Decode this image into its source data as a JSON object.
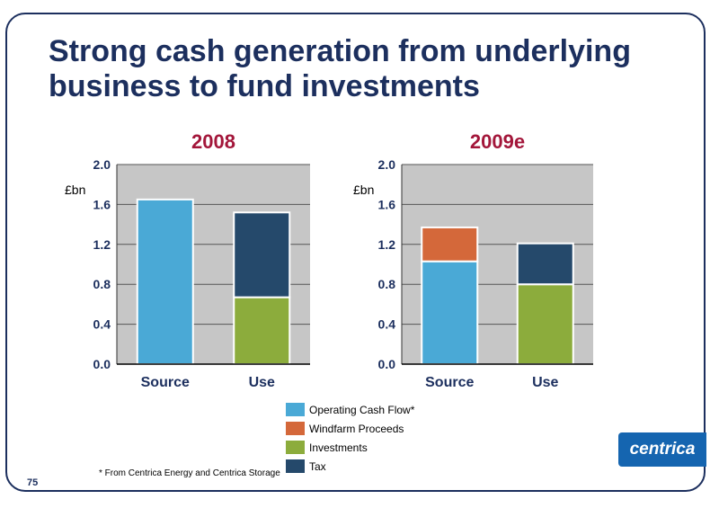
{
  "page": {
    "title": "Strong cash generation from underlying business to fund investments",
    "page_number": "75",
    "footnote": "* From Centrica Energy and Centrica Storage",
    "logo_text": "centrica"
  },
  "colors": {
    "operating_cash_flow": "#4aa9d6",
    "windfarm_proceeds": "#d4683a",
    "investments": "#8cac3c",
    "tax": "#25496b",
    "plot_background": "#c6c6c6",
    "title": "#1c2f5e",
    "chart_title": "#a3163a"
  },
  "legend": [
    {
      "label": "Operating Cash Flow*",
      "color": "#4aa9d6"
    },
    {
      "label": "Windfarm Proceeds",
      "color": "#d4683a"
    },
    {
      "label": "Investments",
      "color": "#8cac3c"
    },
    {
      "label": "Tax",
      "color": "#25496b"
    }
  ],
  "chart_data": [
    {
      "type": "bar",
      "stacked": true,
      "title": "2008",
      "ylabel": "£bn",
      "ylim": [
        0,
        2.0
      ],
      "yticks": [
        "0.0",
        "0.4",
        "0.8",
        "1.2",
        "1.6",
        "2.0"
      ],
      "categories": [
        "Source",
        "Use"
      ],
      "series": [
        {
          "name": "Operating Cash Flow*",
          "values": [
            1.65,
            0
          ]
        },
        {
          "name": "Windfarm Proceeds",
          "values": [
            0,
            0
          ]
        },
        {
          "name": "Investments",
          "values": [
            0,
            0.67
          ]
        },
        {
          "name": "Tax",
          "values": [
            0,
            0.85
          ]
        }
      ]
    },
    {
      "type": "bar",
      "stacked": true,
      "title": "2009e",
      "ylabel": "£bn",
      "ylim": [
        0,
        2.0
      ],
      "yticks": [
        "0.0",
        "0.4",
        "0.8",
        "1.2",
        "1.6",
        "2.0"
      ],
      "categories": [
        "Source",
        "Use"
      ],
      "series": [
        {
          "name": "Operating Cash Flow*",
          "values": [
            1.03,
            0
          ]
        },
        {
          "name": "Windfarm Proceeds",
          "values": [
            0.34,
            0
          ]
        },
        {
          "name": "Investments",
          "values": [
            0,
            0.8
          ]
        },
        {
          "name": "Tax",
          "values": [
            0,
            0.41
          ]
        }
      ]
    }
  ]
}
